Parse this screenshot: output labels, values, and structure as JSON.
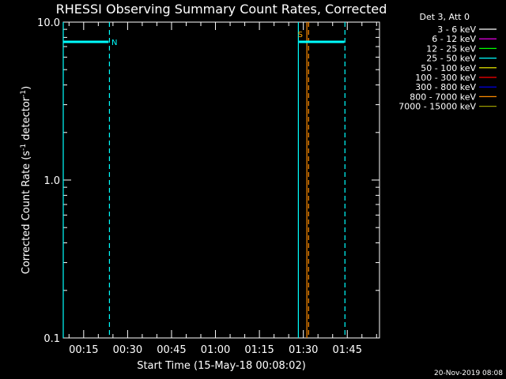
{
  "chart_data": {
    "type": "line",
    "title": "RHESSI Observing Summary Count Rates, Corrected",
    "xlabel": "Start Time (15-May-18 00:08:02)",
    "ylabel": "Corrected Count Rate (s",
    "ylabel_sup1": "-1",
    "ylabel_mid": " detector",
    "ylabel_sup2": "-1",
    "ylabel_end": ")",
    "y_scale": "log",
    "ylim": [
      0.1,
      10.0
    ],
    "y_ticks": [
      {
        "value": 10.0,
        "label": "10.0"
      },
      {
        "value": 1.0,
        "label": "1.0"
      },
      {
        "value": 0.1,
        "label": "0.1"
      }
    ],
    "xlim_min": [
      8.03,
      116.0
    ],
    "x_ticks": [
      {
        "value": 15,
        "label": "00:15"
      },
      {
        "value": 30,
        "label": "00:30"
      },
      {
        "value": 45,
        "label": "00:45"
      },
      {
        "value": 60,
        "label": "01:00"
      },
      {
        "value": 75,
        "label": "01:15"
      },
      {
        "value": 90,
        "label": "01:30"
      },
      {
        "value": 105,
        "label": "01:45"
      }
    ],
    "legend_header": "Det 3, Att 0",
    "legend_position": "top-right",
    "legend": [
      {
        "name": "3 - 6 keV",
        "color": "#ffffff"
      },
      {
        "name": "6 - 12 keV",
        "color": "#ff00ff"
      },
      {
        "name": "12 - 25 keV",
        "color": "#00ff00"
      },
      {
        "name": "25 - 50 keV",
        "color": "#00ffff"
      },
      {
        "name": "50 - 100 keV",
        "color": "#ffff00"
      },
      {
        "name": "100 - 300 keV",
        "color": "#ff0000"
      },
      {
        "name": "300 - 800 keV",
        "color": "#0000ff"
      },
      {
        "name": "800 - 7000 keV",
        "color": "#ff8c00"
      },
      {
        "name": "7000 - 15000 keV",
        "color": "#9a9a00"
      }
    ],
    "series": [
      {
        "name": "25 - 50 keV",
        "color": "#00ffff",
        "segments": [
          {
            "x": [
              8.03,
              23.5
            ],
            "y": [
              7.5,
              7.5
            ]
          },
          {
            "x": [
              88.5,
              104.0
            ],
            "y": [
              7.5,
              7.5
            ]
          }
        ]
      }
    ],
    "solid_vlines": [
      {
        "x": 8.03,
        "color": "#00ffff"
      },
      {
        "x": 88.3,
        "color": "#00ffff"
      },
      {
        "x": 91.2,
        "color": "#ff8c00"
      }
    ],
    "dashed_vlines": [
      {
        "x": 23.8,
        "color": "#00ffff"
      },
      {
        "x": 91.8,
        "color": "#ff8c00"
      },
      {
        "x": 104.2,
        "color": "#00ffff"
      }
    ],
    "markers": [
      {
        "x": 24.5,
        "y": 7.5,
        "label": "N",
        "color": "#00ffff"
      },
      {
        "x": 88.1,
        "y": 8.4,
        "label": "S",
        "color": "#ffa500"
      }
    ],
    "footer_date": "20-Nov-2019 08:08"
  }
}
